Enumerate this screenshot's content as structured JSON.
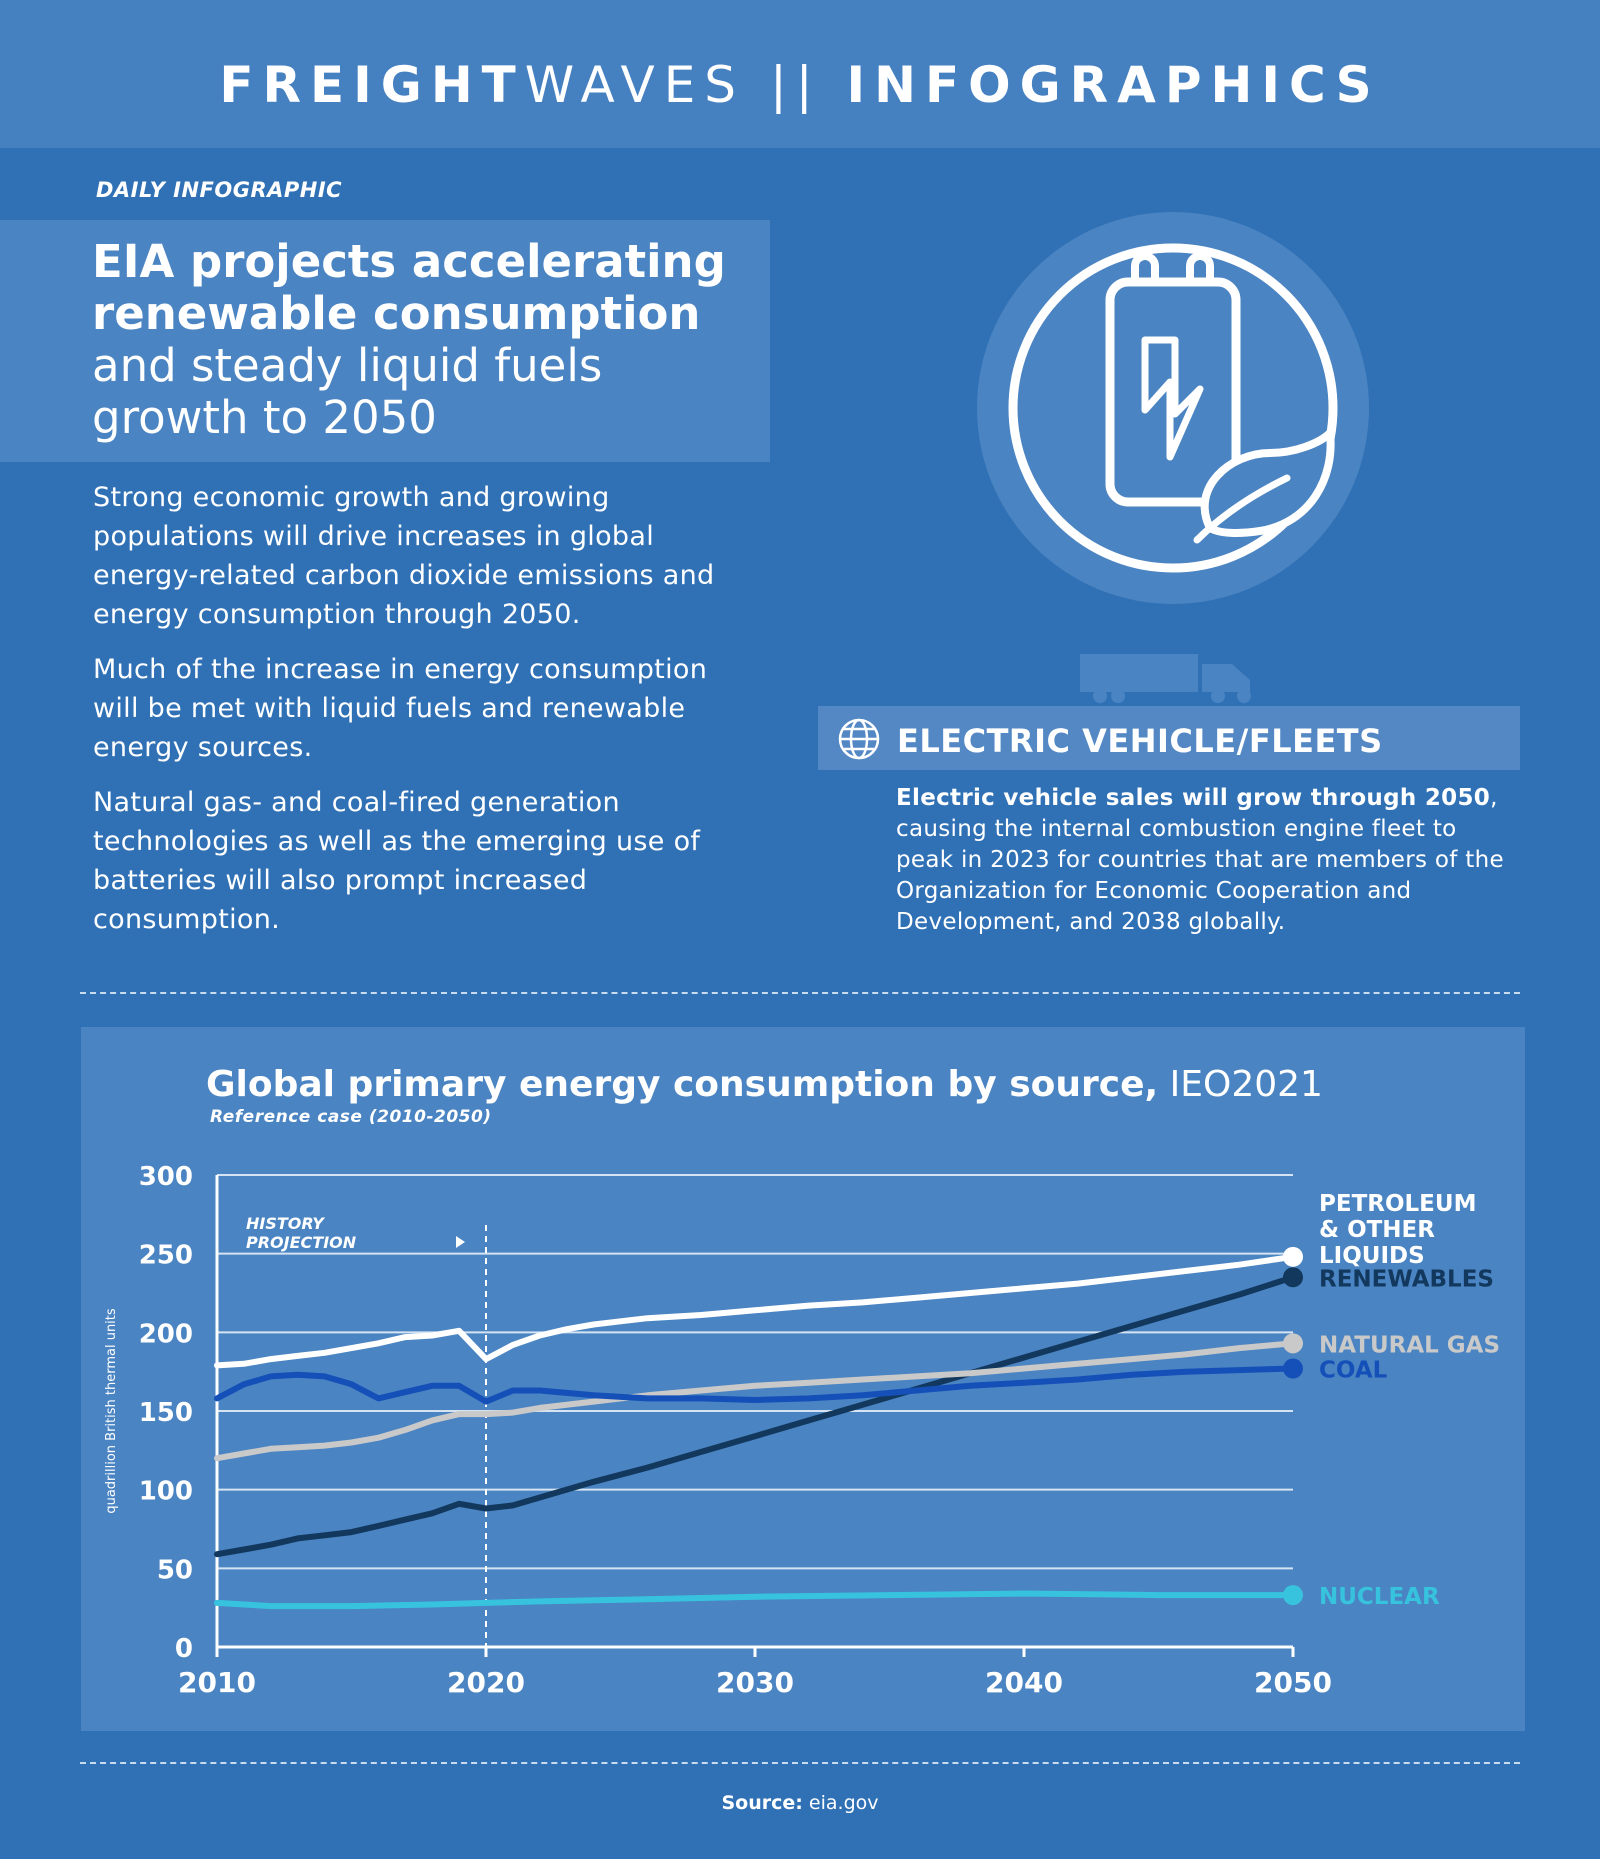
{
  "header": {
    "brand_bold": "FREIGHT",
    "brand_light": "WAVES",
    "separator": " || ",
    "section": "INFOGRAPHICS"
  },
  "kicker": "DAILY INFOGRAPHIC",
  "headline": {
    "bold_line1": "EIA projects accelerating",
    "bold_line2": "renewable consumption",
    "light_line1": "and steady liquid fuels",
    "light_line2": "growth to 2050"
  },
  "paragraphs": [
    "Strong economic growth and growing populations will drive increases in global energy-related carbon dioxide emissions and energy consumption through 2050.",
    "Much of the increase in energy consumption will be met with liquid fuels and renewable energy sources.",
    "Natural gas- and coal-fired generation technologies as well as the emerging use of batteries will also prompt increased consumption."
  ],
  "icons": {
    "main": "battery-leaf-icon",
    "truck": "truck-icon",
    "globe": "globe-icon"
  },
  "ev_section": {
    "title": "ELECTRIC VEHICLE/FLEETS",
    "text_bold": "Electric vehicle sales will grow through 2050",
    "text_rest": ", causing the internal combustion engine fleet to peak in 2023 for countries that are members of the Organization for Economic Cooperation and Development, and 2038 globally."
  },
  "colors": {
    "background": "#3071b6",
    "panel": "#4a84c2",
    "petroleum": "#ffffff",
    "renewables": "#12385e",
    "natural_gas": "#c9c9c9",
    "coal": "#1450b8",
    "nuclear": "#37c3de"
  },
  "chart_data": {
    "type": "line",
    "title": "Global primary energy consumption by source,",
    "title_suffix": " IEO2021",
    "subtitle": "Reference case (2010-2050)",
    "ylabel": "quadrillion British thermal units",
    "xlim": [
      2010,
      2050
    ],
    "ylim": [
      0,
      300
    ],
    "yticks": [
      0,
      50,
      100,
      150,
      200,
      250,
      300
    ],
    "xticks": [
      2010,
      2020,
      2030,
      2040,
      2050
    ],
    "grid": "horizontal",
    "divider": {
      "x": 2020,
      "label_history": "HISTORY",
      "label_projection": "PROJECTION"
    },
    "series": [
      {
        "name": "PETROLEUM & OTHER LIQUIDS",
        "label_lines": [
          "PETROLEUM",
          "& OTHER",
          "LIQUIDS"
        ],
        "color": "#ffffff",
        "x": [
          2010,
          2011,
          2012,
          2013,
          2014,
          2015,
          2016,
          2017,
          2018,
          2019,
          2020,
          2021,
          2022,
          2023,
          2024,
          2025,
          2026,
          2028,
          2030,
          2032,
          2034,
          2036,
          2038,
          2040,
          2042,
          2044,
          2046,
          2048,
          2050
        ],
        "y": [
          179,
          180,
          183,
          185,
          187,
          190,
          193,
          197,
          198,
          201,
          183,
          192,
          198,
          202,
          205,
          207,
          209,
          211,
          214,
          217,
          219,
          222,
          225,
          228,
          231,
          235,
          239,
          243,
          248
        ]
      },
      {
        "name": "RENEWABLES",
        "label_lines": [
          "RENEWABLES"
        ],
        "color": "#12385e",
        "x": [
          2010,
          2011,
          2012,
          2013,
          2014,
          2015,
          2016,
          2017,
          2018,
          2019,
          2020,
          2021,
          2022,
          2024,
          2026,
          2028,
          2030,
          2032,
          2034,
          2036,
          2038,
          2040,
          2042,
          2044,
          2046,
          2048,
          2050
        ],
        "y": [
          59,
          62,
          65,
          69,
          71,
          73,
          77,
          81,
          85,
          91,
          88,
          90,
          95,
          105,
          114,
          124,
          134,
          144,
          154,
          164,
          174,
          184,
          194,
          204,
          214,
          224,
          235
        ]
      },
      {
        "name": "NATURAL GAS",
        "label_lines": [
          "NATURAL GAS"
        ],
        "color": "#c9c9c9",
        "x": [
          2010,
          2011,
          2012,
          2013,
          2014,
          2015,
          2016,
          2017,
          2018,
          2019,
          2020,
          2021,
          2022,
          2024,
          2026,
          2028,
          2030,
          2032,
          2034,
          2036,
          2038,
          2040,
          2042,
          2044,
          2046,
          2048,
          2050
        ],
        "y": [
          120,
          123,
          126,
          127,
          128,
          130,
          133,
          138,
          144,
          148,
          148,
          149,
          152,
          156,
          160,
          163,
          166,
          168,
          170,
          172,
          174,
          177,
          180,
          183,
          186,
          190,
          193
        ]
      },
      {
        "name": "COAL",
        "label_lines": [
          "COAL"
        ],
        "color": "#1450b8",
        "x": [
          2010,
          2011,
          2012,
          2013,
          2014,
          2015,
          2016,
          2017,
          2018,
          2019,
          2020,
          2021,
          2022,
          2024,
          2026,
          2028,
          2030,
          2032,
          2034,
          2036,
          2038,
          2040,
          2042,
          2044,
          2046,
          2048,
          2050
        ],
        "y": [
          158,
          167,
          172,
          173,
          172,
          167,
          158,
          162,
          166,
          166,
          156,
          163,
          163,
          160,
          158,
          158,
          157,
          158,
          160,
          163,
          166,
          168,
          170,
          173,
          175,
          176,
          177
        ]
      },
      {
        "name": "NUCLEAR",
        "label_lines": [
          "NUCLEAR"
        ],
        "color": "#37c3de",
        "x": [
          2010,
          2012,
          2015,
          2018,
          2020,
          2022,
          2025,
          2030,
          2035,
          2040,
          2045,
          2050
        ],
        "y": [
          28,
          26,
          26,
          27,
          28,
          29,
          30,
          32,
          33,
          34,
          33,
          33
        ]
      }
    ]
  },
  "source": {
    "label": "Source:",
    "value": " eia.gov"
  }
}
